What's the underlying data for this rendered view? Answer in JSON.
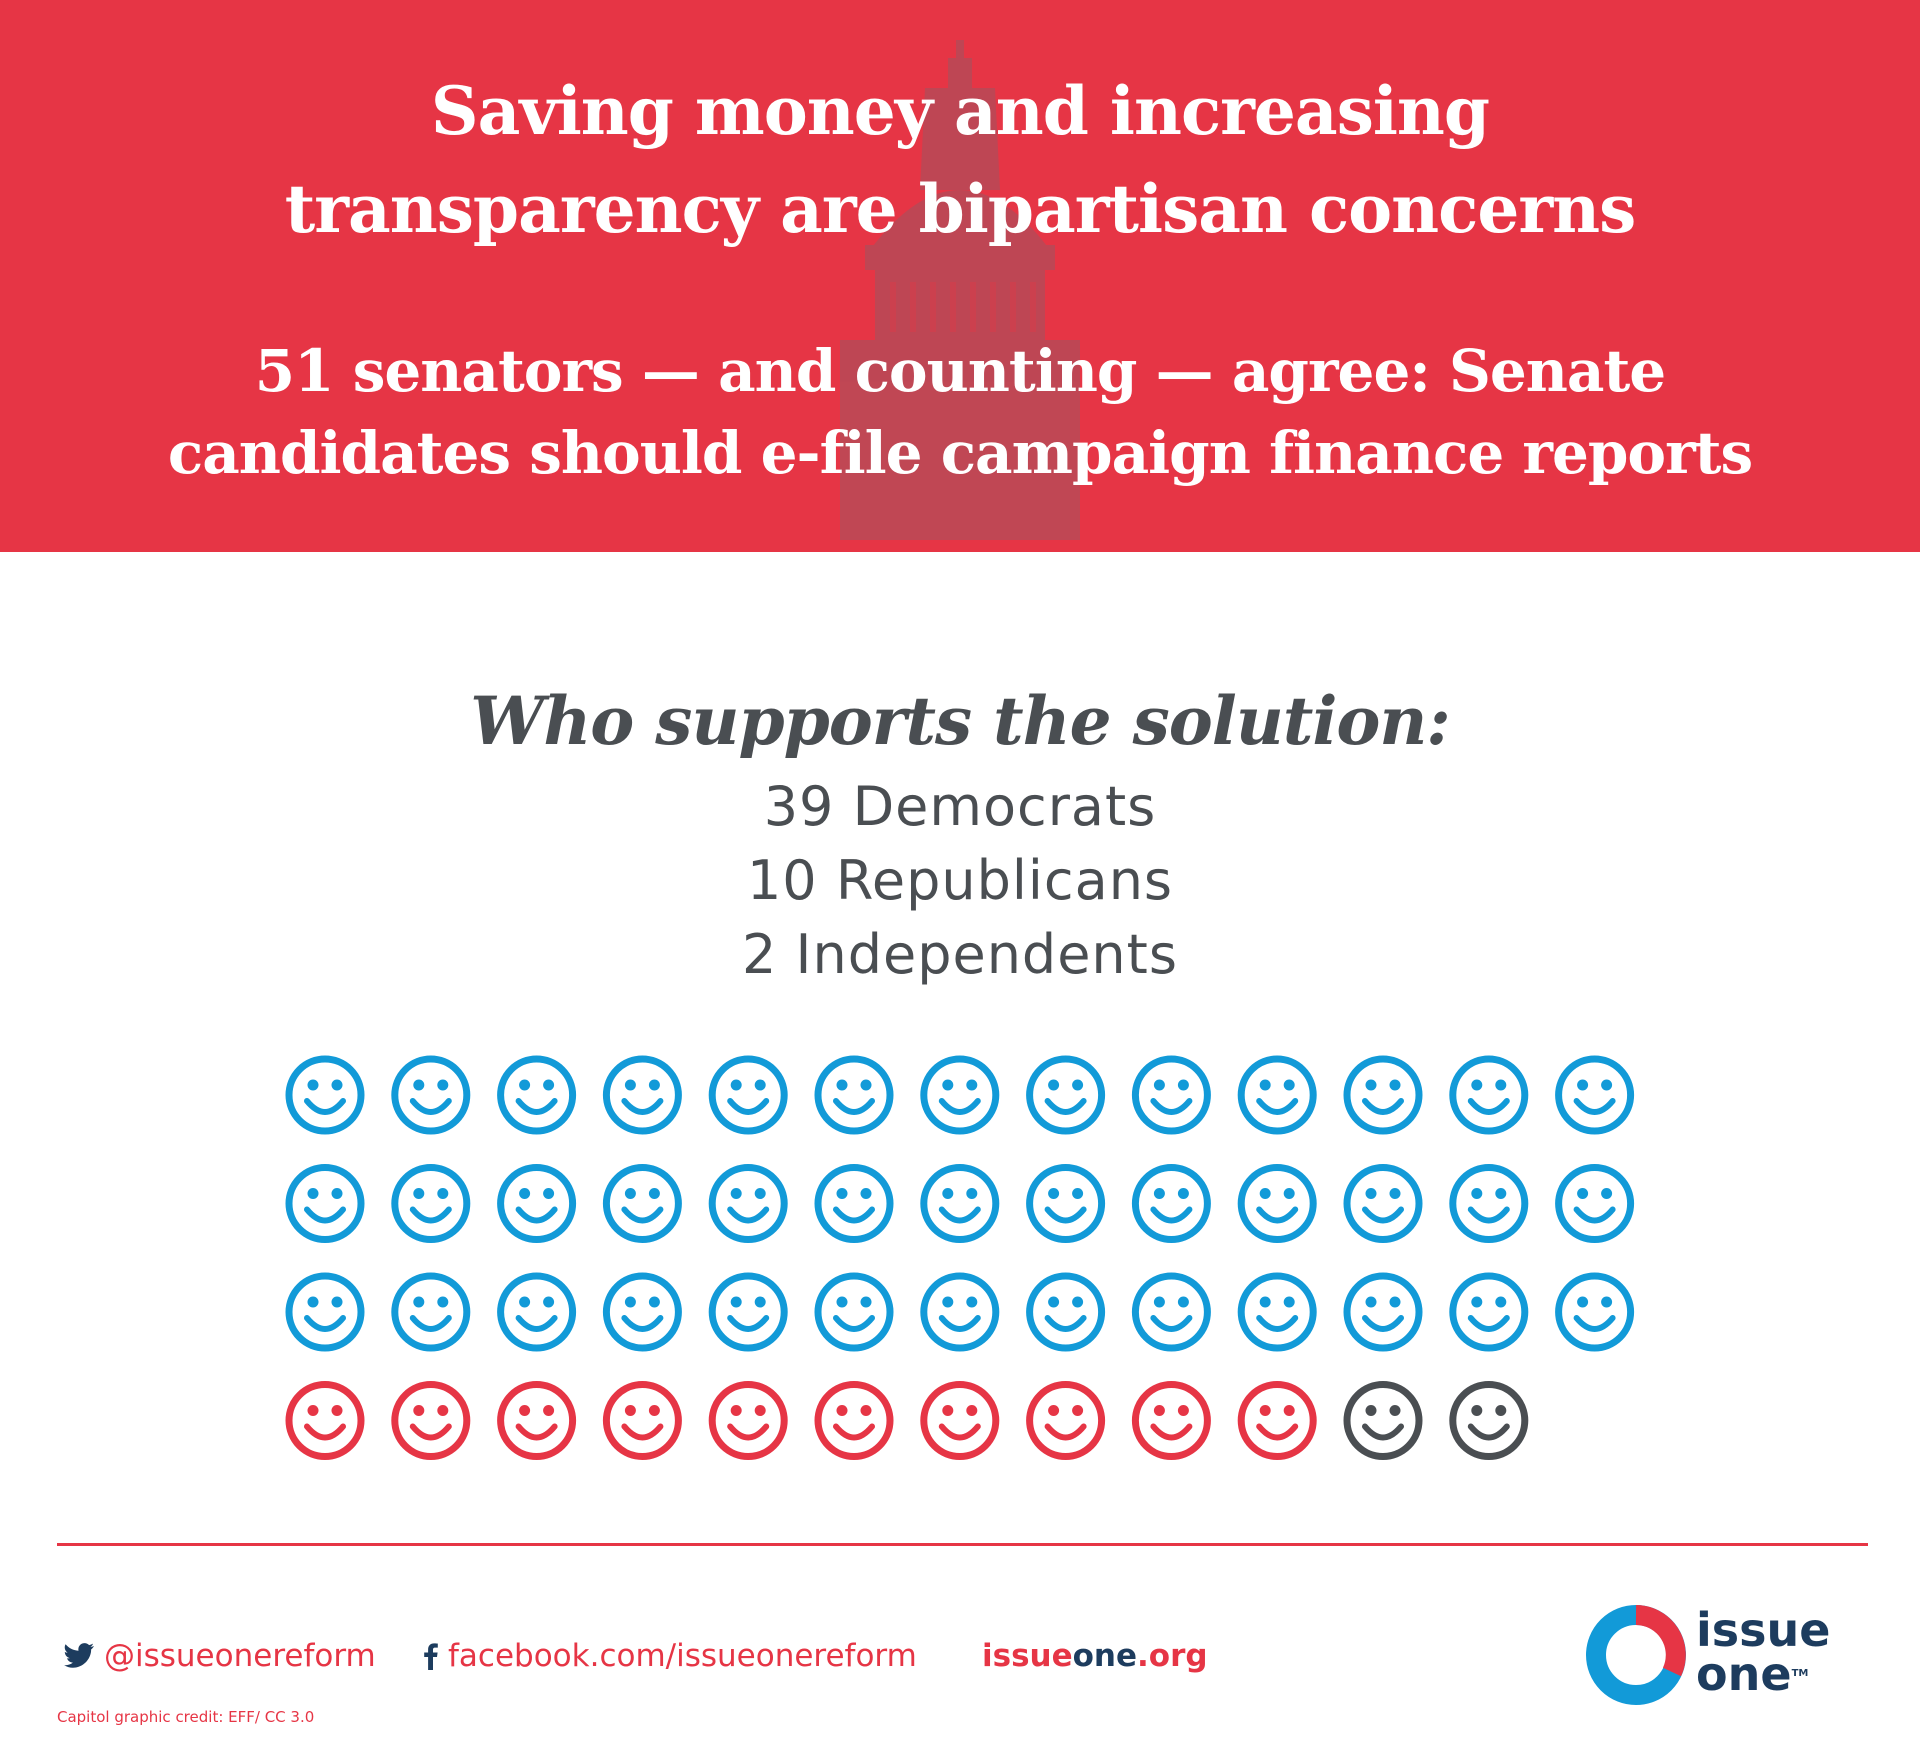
{
  "banner": {
    "headline": [
      "Saving money and increasing",
      "transparency are bipartisan concerns"
    ],
    "subhead": [
      "51 senators — and counting — agree: Senate",
      "candidates should e-file campaign finance reports"
    ],
    "color": "#e63545"
  },
  "who": {
    "title": "Who supports the solution:",
    "parties": [
      {
        "label": "39 Democrats",
        "count": 39,
        "color": "#129ad8"
      },
      {
        "label": "10 Republicans",
        "count": 10,
        "color": "#e63545"
      },
      {
        "label": "2 Independents",
        "count": 2,
        "color": "#4a4e52"
      }
    ]
  },
  "footer": {
    "twitter": "@issueonereform",
    "facebook": "facebook.com/issueonereform",
    "website_part1": "issue",
    "website_part2": "one",
    "website_part3": ".org",
    "logo_line1": "issue",
    "logo_line2": "one",
    "logo_tm": "TM",
    "credit": "Capitol graphic credit: EFF/ CC 3.0"
  }
}
